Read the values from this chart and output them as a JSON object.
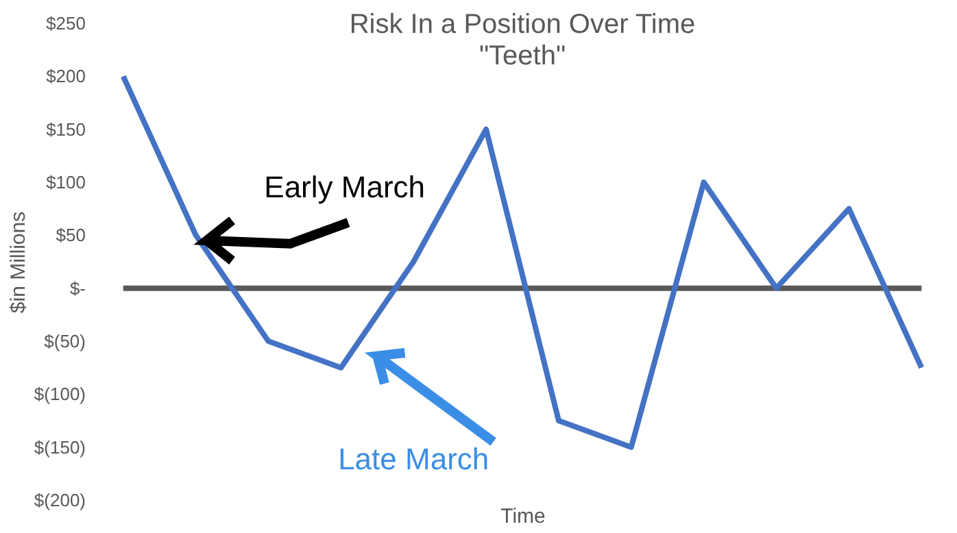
{
  "chart_data": {
    "type": "line",
    "title": "Risk In a Position Over Time",
    "subtitle": "\"Teeth\"",
    "xlabel": "Time",
    "ylabel": "$in Millions",
    "categories": [
      null,
      null,
      null,
      null,
      null,
      null,
      null,
      null,
      null,
      null,
      null,
      null
    ],
    "series": [
      {
        "color": "#4472c4",
        "values": [
          200,
          50,
          -50,
          -75,
          25,
          150,
          -125,
          -150,
          100,
          0,
          75,
          -75
        ]
      }
    ],
    "ylim": [
      -200,
      250
    ],
    "yticks": [
      {
        "value": -200,
        "label": "$(200)"
      },
      {
        "value": -150,
        "label": "$(150)"
      },
      {
        "value": -100,
        "label": "$(100)"
      },
      {
        "value": -50,
        "label": "$(50)"
      },
      {
        "value": 0,
        "label": "$-"
      },
      {
        "value": 50,
        "label": "$50"
      },
      {
        "value": 100,
        "label": "$100"
      },
      {
        "value": 150,
        "label": "$150"
      },
      {
        "value": 200,
        "label": "$200"
      },
      {
        "value": 250,
        "label": "$250"
      }
    ],
    "ref_lines": [
      {
        "axis": "y",
        "value": 0,
        "color": "#595959"
      }
    ],
    "annotations": [
      "Early March",
      "Late March"
    ],
    "marker": "none",
    "line_style": "solid"
  }
}
